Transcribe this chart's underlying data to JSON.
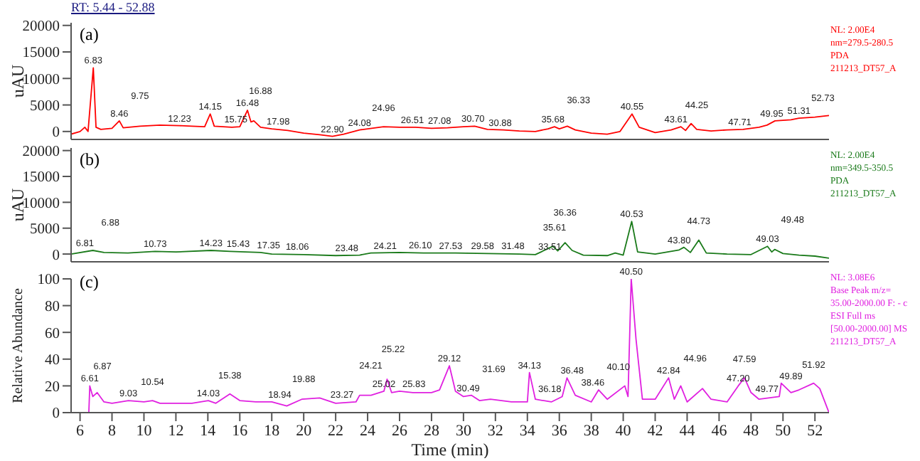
{
  "chart_data": [
    {
      "type": "line",
      "title": "RT: 5.44 - 52.88",
      "subtitle": "(a)",
      "ylabel": "uAU",
      "xlim": [
        5.44,
        52.88
      ],
      "ylim": [
        -1500,
        20500
      ],
      "yticks": [
        0,
        5000,
        10000,
        15000,
        20000
      ],
      "tick_labels": "y",
      "line_style": "solid",
      "marker": "none",
      "series": [
        {
          "color": "#ff0000",
          "x": [
            5.44,
            6.0,
            6.3,
            6.5,
            6.83,
            7.0,
            7.3,
            8.0,
            8.46,
            8.7,
            9.75,
            11,
            12.23,
            13,
            13.8,
            14.15,
            14.4,
            15.5,
            16.0,
            16.48,
            16.7,
            16.88,
            17.3,
            18,
            19,
            20,
            21,
            21.8,
            22.5,
            23.5,
            24.5,
            25,
            26,
            27,
            28,
            29,
            30,
            30.7,
            31.5,
            32.5,
            33.5,
            34.5,
            35.3,
            35.7,
            36,
            36.5,
            37,
            38,
            39,
            39.8,
            40.55,
            41,
            42,
            43,
            43.61,
            43.9,
            44.25,
            44.6,
            45.5,
            46.5,
            47.5,
            48.5,
            49,
            49.5,
            50.5,
            51,
            52,
            52.88
          ],
          "values": [
            -500,
            0,
            800,
            0,
            12000,
            800,
            400,
            600,
            2000,
            700,
            1000,
            1200,
            1100,
            1000,
            900,
            3300,
            1000,
            800,
            900,
            4000,
            1800,
            2000,
            800,
            500,
            200,
            -300,
            -600,
            -900,
            -500,
            300,
            700,
            900,
            800,
            800,
            600,
            700,
            900,
            1000,
            400,
            300,
            100,
            0,
            500,
            900,
            500,
            1000,
            300,
            -300,
            -500,
            0,
            3300,
            800,
            -200,
            300,
            900,
            200,
            1500,
            400,
            100,
            300,
            400,
            800,
            1200,
            2000,
            2200,
            2500,
            2700,
            3000
          ]
        }
      ],
      "annotations": [
        "NL: 2.00E4",
        "nm=279.5-280.5",
        "PDA",
        "211213_DT57_A",
        {
          "text": "6.83",
          "x": 6.83,
          "y": 12000
        },
        {
          "text": "8.46",
          "x": 8.46,
          "y": 2000
        },
        {
          "text": "9.75",
          "x": 9.75,
          "y": 1000
        },
        {
          "text": "12.23",
          "x": 12.23,
          "y": 1100
        },
        {
          "text": "14.15",
          "x": 14.15,
          "y": 3300
        },
        {
          "text": "15.75",
          "x": 15.75,
          "y": 900
        },
        {
          "text": "16.48",
          "x": 16.48,
          "y": 4000
        },
        {
          "text": "16.88",
          "x": 17.3,
          "y": 2000
        },
        {
          "text": "17.98",
          "x": 18.4,
          "y": 500
        },
        {
          "text": "22.90",
          "x": 21.8,
          "y": -900
        },
        {
          "text": "24.08",
          "x": 23.5,
          "y": 300
        },
        {
          "text": "24.96",
          "x": 25,
          "y": 900
        },
        {
          "text": "26.51",
          "x": 26.8,
          "y": 800
        },
        {
          "text": "27.08",
          "x": 28.5,
          "y": 650
        },
        {
          "text": "30.70",
          "x": 30.6,
          "y": 1000
        },
        {
          "text": "30.88",
          "x": 32.3,
          "y": 300
        },
        {
          "text": "35.68",
          "x": 35.6,
          "y": 900
        },
        {
          "text": "36.33",
          "x": 37.2,
          "y": 300
        },
        {
          "text": "40.55",
          "x": 40.55,
          "y": 3300
        },
        {
          "text": "43.61",
          "x": 43.3,
          "y": 900
        },
        {
          "text": "44.25",
          "x": 44.6,
          "y": 1500
        },
        {
          "text": "47.71",
          "x": 47.3,
          "y": 400
        },
        {
          "text": "49.95",
          "x": 49.3,
          "y": 2000
        },
        {
          "text": "51.31",
          "x": 51,
          "y": 2500
        },
        {
          "text": "52.73",
          "x": 52.5,
          "y": 2800
        }
      ]
    },
    {
      "type": "line",
      "subtitle": "(b)",
      "ylabel": "uAU",
      "xlim": [
        5.44,
        52.88
      ],
      "ylim": [
        -1500,
        20500
      ],
      "yticks": [
        0,
        5000,
        10000,
        15000,
        20000
      ],
      "tick_labels": "y",
      "line_style": "solid",
      "marker": "none",
      "series": [
        {
          "color": "#1a7a1a",
          "x": [
            5.44,
            6.8,
            7.5,
            9,
            10.7,
            12,
            14.2,
            15.4,
            17.3,
            18,
            20,
            22,
            23.5,
            24.2,
            26,
            27.5,
            29.5,
            31.5,
            33.5,
            34.5,
            35.6,
            35.9,
            36.36,
            36.8,
            37.5,
            39,
            39.5,
            40,
            40.53,
            40.9,
            42,
            43.5,
            43.8,
            44.2,
            44.73,
            45.2,
            46.5,
            48,
            49.03,
            49.3,
            49.48,
            50,
            51,
            52,
            52.88
          ],
          "values": [
            0,
            700,
            300,
            200,
            500,
            400,
            700,
            500,
            300,
            0,
            -100,
            -300,
            -200,
            200,
            300,
            200,
            200,
            100,
            0,
            -100,
            1500,
            600,
            2200,
            700,
            -200,
            -300,
            200,
            -200,
            6300,
            400,
            0,
            800,
            1300,
            300,
            2700,
            200,
            0,
            -100,
            1500,
            400,
            900,
            100,
            -200,
            -400,
            -800
          ]
        }
      ],
      "annotations": [
        "NL: 2.00E4",
        "nm=349.5-350.5",
        "PDA",
        "211213_DT57_A",
        {
          "text": "6.81",
          "x": 6.3,
          "y": 700
        },
        {
          "text": "6.88",
          "x": 7.9,
          "y": 300
        },
        {
          "text": "10.73",
          "x": 10.7,
          "y": 500
        },
        {
          "text": "14.23",
          "x": 14.2,
          "y": 700
        },
        {
          "text": "15.43",
          "x": 15.9,
          "y": 500
        },
        {
          "text": "17.35",
          "x": 17.8,
          "y": 300
        },
        {
          "text": "18.06",
          "x": 19.6,
          "y": 0
        },
        {
          "text": "23.48",
          "x": 22.7,
          "y": -200
        },
        {
          "text": "24.21",
          "x": 25.1,
          "y": 200
        },
        {
          "text": "26.10",
          "x": 27.3,
          "y": 300
        },
        {
          "text": "27.53",
          "x": 29.2,
          "y": 200
        },
        {
          "text": "29.58",
          "x": 31.2,
          "y": 200
        },
        {
          "text": "31.48",
          "x": 33.1,
          "y": 100
        },
        {
          "text": "33.51",
          "x": 35.4,
          "y": 0
        },
        {
          "text": "35.61",
          "x": 35.7,
          "y": 1500
        },
        {
          "text": "36.36",
          "x": 36.36,
          "y": 2200
        },
        {
          "text": "40.53",
          "x": 40.53,
          "y": 6300
        },
        {
          "text": "43.80",
          "x": 43.5,
          "y": 1300
        },
        {
          "text": "44.73",
          "x": 44.73,
          "y": 2700
        },
        {
          "text": "49.03",
          "x": 49.03,
          "y": 1500
        },
        {
          "text": "49.48",
          "x": 50.6,
          "y": 900
        }
      ]
    },
    {
      "type": "line",
      "subtitle": "(c)",
      "xlabel": "Time (min)",
      "ylabel": "Relative Abundance",
      "xlim": [
        5.44,
        52.88
      ],
      "ylim": [
        0,
        100
      ],
      "xticks": [
        6,
        8,
        10,
        12,
        14,
        16,
        18,
        20,
        22,
        24,
        26,
        28,
        30,
        32,
        34,
        36,
        38,
        40,
        42,
        44,
        46,
        48,
        50,
        52
      ],
      "yticks": [
        0,
        20,
        40,
        60,
        80,
        100
      ],
      "line_style": "solid",
      "marker": "none",
      "series": [
        {
          "color": "#e020e0",
          "x": [
            5.44,
            6.55,
            6.61,
            6.8,
            7.07,
            7.5,
            8,
            9.03,
            10,
            10.54,
            11,
            12,
            13,
            14.03,
            14.5,
            15.38,
            16,
            17,
            18,
            18.94,
            19.88,
            21,
            22,
            23.27,
            23.5,
            24.21,
            25.02,
            25.22,
            25.5,
            26,
            26.83,
            28,
            28.5,
            29.12,
            29.5,
            30,
            30.49,
            31,
            31.69,
            33,
            34,
            34.13,
            34.5,
            35.5,
            36.18,
            36.48,
            37,
            38,
            38.46,
            39,
            40.1,
            40.3,
            40.5,
            40.8,
            41.2,
            42,
            42.84,
            43.2,
            43.6,
            44,
            44.96,
            45.5,
            46.5,
            47.2,
            47.59,
            48,
            48.5,
            49.77,
            49.89,
            50.5,
            51,
            51.92,
            52.3,
            52.88
          ],
          "values": [
            0,
            0,
            20,
            12,
            15,
            8,
            7,
            9,
            8,
            9,
            7,
            7,
            7,
            9,
            7,
            14,
            9,
            8,
            8,
            5,
            10,
            11,
            7,
            8,
            13,
            13,
            16,
            25,
            15,
            16,
            15,
            15,
            17,
            35,
            16,
            12,
            13,
            9,
            10,
            8,
            8,
            30,
            10,
            8,
            12,
            26,
            13,
            8,
            17,
            10,
            20,
            12,
            100,
            55,
            10,
            10,
            26,
            10,
            20,
            8,
            18,
            10,
            8,
            20,
            26,
            15,
            10,
            12,
            22,
            15,
            17,
            22,
            18,
            0
          ]
        }
      ],
      "annotations": [
        "NL: 3.08E6",
        "Base Peak m/z=",
        "35.00-2000.00 F: - c",
        "ESI Full ms",
        "[50.00-2000.00] MS",
        "211213_DT57_A",
        {
          "text": "6.61",
          "x": 6.61,
          "y": 20
        },
        {
          "text": "6.87",
          "x": 7.4,
          "y": 12
        },
        {
          "text": "9.03",
          "x": 9.03,
          "y": 9
        },
        {
          "text": "10.54",
          "x": 10.54,
          "y": 9
        },
        {
          "text": "14.03",
          "x": 14.03,
          "y": 9
        },
        {
          "text": "15.38",
          "x": 15.38,
          "y": 14
        },
        {
          "text": "18.94",
          "x": 18.5,
          "y": 8
        },
        {
          "text": "19.88",
          "x": 20.0,
          "y": 11
        },
        {
          "text": "23.27",
          "x": 22.4,
          "y": 8
        },
        {
          "text": "25.02",
          "x": 25.02,
          "y": 16
        },
        {
          "text": "24.21",
          "x": 24.2,
          "y": 13
        },
        {
          "text": "25.22",
          "x": 25.6,
          "y": 25
        },
        {
          "text": "25.83",
          "x": 26.9,
          "y": 16
        },
        {
          "text": "29.12",
          "x": 29.12,
          "y": 35
        },
        {
          "text": "30.49",
          "x": 30.3,
          "y": 13
        },
        {
          "text": "31.69",
          "x": 31.9,
          "y": 10
        },
        {
          "text": "34.13",
          "x": 34.13,
          "y": 30
        },
        {
          "text": "36.18",
          "x": 35.4,
          "y": 12
        },
        {
          "text": "36.48",
          "x": 36.8,
          "y": 26
        },
        {
          "text": "38.46",
          "x": 38.1,
          "y": 17
        },
        {
          "text": "40.10",
          "x": 39.7,
          "y": 20
        },
        {
          "text": "40.50",
          "x": 40.5,
          "y": 100
        },
        {
          "text": "42.84",
          "x": 42.84,
          "y": 26
        },
        {
          "text": "44.96",
          "x": 44.5,
          "y": 18
        },
        {
          "text": "47.20",
          "x": 47.2,
          "y": 20
        },
        {
          "text": "47.59",
          "x": 47.59,
          "y": 26
        },
        {
          "text": "49.77",
          "x": 49.0,
          "y": 12
        },
        {
          "text": "49.89",
          "x": 50.5,
          "y": 22
        },
        {
          "text": "51.92",
          "x": 51.92,
          "y": 22
        }
      ]
    }
  ]
}
